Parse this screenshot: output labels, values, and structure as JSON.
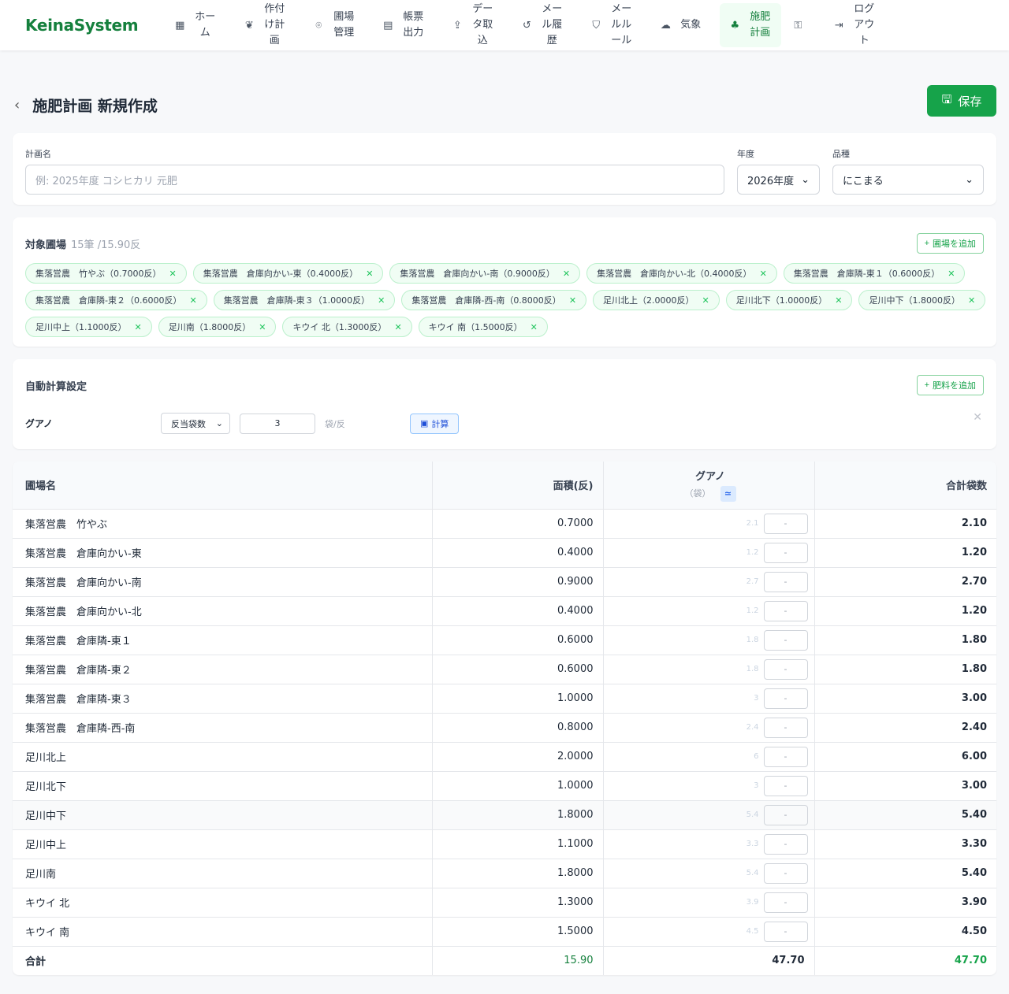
{
  "nav": {
    "logo": "KeinaSystem",
    "items": [
      {
        "label": "ホーム",
        "icon": "grid-icon",
        "glyph": "▦"
      },
      {
        "label": "作付け計画",
        "icon": "wheat-icon",
        "glyph": "❦"
      },
      {
        "label": "圃場管理",
        "icon": "map-pin-icon",
        "glyph": "⌾"
      },
      {
        "label": "帳票出力",
        "icon": "document-icon",
        "glyph": "▤"
      },
      {
        "label": "データ取込",
        "icon": "upload-icon",
        "glyph": "⇪"
      },
      {
        "label": "メール履歴",
        "icon": "history-icon",
        "glyph": "↺"
      },
      {
        "label": "メールルール",
        "icon": "shield-icon",
        "glyph": "⛉"
      },
      {
        "label": "気象",
        "icon": "cloud-icon",
        "glyph": "☁"
      },
      {
        "label": "施肥計画",
        "icon": "sprout-icon",
        "glyph": "♣",
        "active": true
      }
    ],
    "key_icon": "key-icon",
    "logout": "ログアウト"
  },
  "page": {
    "title": "施肥計画 新規作成",
    "save": "保存"
  },
  "form": {
    "name_label": "計画名",
    "name_placeholder": "例: 2025年度 コシヒカリ 元肥",
    "year_label": "年度",
    "year_value": "2026年度",
    "variety_label": "品種",
    "variety_value": "にこまる"
  },
  "fields": {
    "title": "対象圃場",
    "summary": "15筆 /15.90反",
    "add": "圃場を追加",
    "chips": [
      "集落営農　竹やぶ（0.7000反）",
      "集落営農　倉庫向かい-東（0.4000反）",
      "集落営農　倉庫向かい-南（0.9000反）",
      "集落営農　倉庫向かい-北（0.4000反）",
      "集落営農　倉庫隣-東１（0.6000反）",
      "集落営農　倉庫隣-東２（0.6000反）",
      "集落営農　倉庫隣-東３（1.0000反）",
      "集落営農　倉庫隣-西-南（0.8000反）",
      "足川北上（2.0000反）",
      "足川北下（1.0000反）",
      "足川中下（1.8000反）",
      "足川中上（1.1000反）",
      "足川南（1.8000反）",
      "キウイ 北（1.3000反）",
      "キウイ 南（1.5000反）"
    ]
  },
  "auto": {
    "title": "自動計算設定",
    "add": "肥料を追加",
    "fertilizer": "グアノ",
    "method": "反当袋数",
    "amount": "3",
    "unit": "袋/反",
    "calc": "計算"
  },
  "table": {
    "headers": {
      "name": "圃場名",
      "area": "面積(反)",
      "fert": "グアノ",
      "fert_unit": "（袋）",
      "approx": "≃",
      "total": "合計袋数"
    },
    "rows": [
      [
        "集落営農　竹やぶ",
        "0.7000",
        "2.1",
        "-",
        "2.10"
      ],
      [
        "集落営農　倉庫向かい-東",
        "0.4000",
        "1.2",
        "-",
        "1.20"
      ],
      [
        "集落営農　倉庫向かい-南",
        "0.9000",
        "2.7",
        "-",
        "2.70"
      ],
      [
        "集落営農　倉庫向かい-北",
        "0.4000",
        "1.2",
        "-",
        "1.20"
      ],
      [
        "集落営農　倉庫隣-東１",
        "0.6000",
        "1.8",
        "-",
        "1.80"
      ],
      [
        "集落営農　倉庫隣-東２",
        "0.6000",
        "1.8",
        "-",
        "1.80"
      ],
      [
        "集落営農　倉庫隣-東３",
        "1.0000",
        "3",
        "-",
        "3.00"
      ],
      [
        "集落営農　倉庫隣-西-南",
        "0.8000",
        "2.4",
        "-",
        "2.40"
      ],
      [
        "足川北上",
        "2.0000",
        "6",
        "-",
        "6.00"
      ],
      [
        "足川北下",
        "1.0000",
        "3",
        "-",
        "3.00"
      ],
      [
        "足川中下",
        "1.8000",
        "5.4",
        "-",
        "5.40"
      ],
      [
        "足川中上",
        "1.1000",
        "3.3",
        "-",
        "3.30"
      ],
      [
        "足川南",
        "1.8000",
        "5.4",
        "-",
        "5.40"
      ],
      [
        "キウイ 北",
        "1.3000",
        "3.9",
        "-",
        "3.90"
      ],
      [
        "キウイ 南",
        "1.5000",
        "4.5",
        "-",
        "4.50"
      ]
    ],
    "footer": {
      "label": "合計",
      "area": "15.90",
      "fert": "47.70",
      "total": "47.70"
    }
  },
  "colors": {
    "accent": "#16a34a",
    "total_green": "#16a34a"
  }
}
